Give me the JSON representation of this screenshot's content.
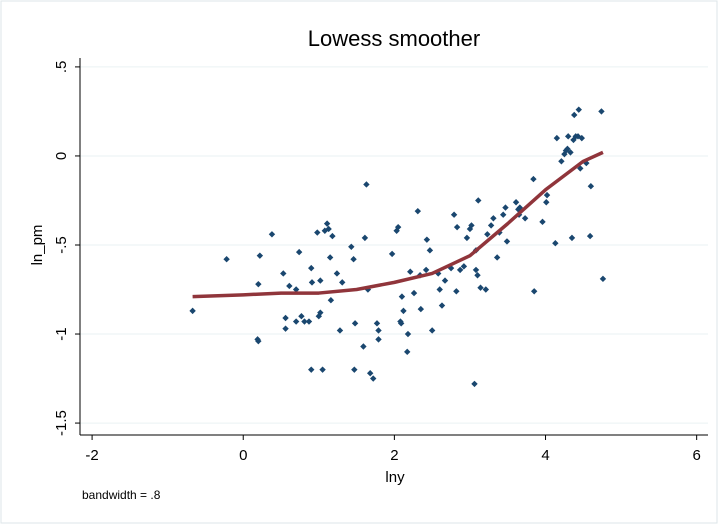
{
  "chart_data": {
    "type": "scatter",
    "title": "Lowess smoother",
    "x_label": "lny",
    "y_label": "ln_pm",
    "note": "bandwidth = .8",
    "xlim": [
      -2.16,
      6.15
    ],
    "ylim": [
      -1.567,
      0.55
    ],
    "xticks": [
      -2,
      0,
      2,
      4,
      6
    ],
    "yticks": [
      {
        "value": -1.5,
        "label": "-1.5"
      },
      {
        "value": -1,
        "label": "-1"
      },
      {
        "value": -0.5,
        "label": "-.5"
      },
      {
        "value": 0,
        "label": "0"
      },
      {
        "value": 0.5,
        "label": ".5"
      }
    ],
    "grid": true,
    "series": [
      {
        "type": "scatter",
        "color": "#1a476f",
        "x": [
          -0.67,
          -0.22,
          0.19,
          0.2,
          0.22,
          0.2,
          0.38,
          0.53,
          0.56,
          0.56,
          0.61,
          0.7,
          0.7,
          0.74,
          0.77,
          0.81,
          0.87,
          0.9,
          0.91,
          0.9,
          0.98,
          1.0,
          1.02,
          1.05,
          1.02,
          1.08,
          1.11,
          1.13,
          1.16,
          1.18,
          1.15,
          1.24,
          1.28,
          1.31,
          1.43,
          1.46,
          1.48,
          1.47,
          1.59,
          1.63,
          1.61,
          1.65,
          1.68,
          1.72,
          1.77,
          1.79,
          1.79,
          1.97,
          2.03,
          2.05,
          2.08,
          2.1,
          2.09,
          2.12,
          2.17,
          2.18,
          2.21,
          2.26,
          2.31,
          2.34,
          2.35,
          2.42,
          2.43,
          2.47,
          2.5,
          2.58,
          2.6,
          2.63,
          2.67,
          2.75,
          2.79,
          2.82,
          2.83,
          2.87,
          2.92,
          2.96,
          3.0,
          3.02,
          3.06,
          3.08,
          3.08,
          3.11,
          3.1,
          3.14,
          3.21,
          3.23,
          3.28,
          3.31,
          3.36,
          3.39,
          3.44,
          3.47,
          3.49,
          3.61,
          3.65,
          3.64,
          3.66,
          3.73,
          3.84,
          3.85,
          3.96,
          4.01,
          4.02,
          4.13,
          4.15,
          4.21,
          4.25,
          4.27,
          4.29,
          4.3,
          4.33,
          4.35,
          4.37,
          4.38,
          4.4,
          4.43,
          4.44,
          4.46,
          4.48,
          4.54,
          4.59,
          4.6,
          4.74,
          4.76
        ],
        "values": [
          -0.87,
          -0.58,
          -1.03,
          -1.04,
          -0.56,
          -0.72,
          -0.44,
          -0.66,
          -0.91,
          -0.97,
          -0.73,
          -0.75,
          -0.93,
          -0.54,
          -0.9,
          -0.93,
          -0.93,
          -0.63,
          -0.71,
          -1.2,
          -0.43,
          -0.9,
          -0.7,
          -1.2,
          -0.88,
          -0.42,
          -0.38,
          -0.41,
          -0.81,
          -0.45,
          -0.57,
          -0.66,
          -0.98,
          -0.71,
          -0.51,
          -0.58,
          -0.94,
          -1.2,
          -1.07,
          -0.16,
          -0.46,
          -0.75,
          -1.22,
          -1.25,
          -0.94,
          -0.98,
          -1.03,
          -0.55,
          -0.42,
          -0.4,
          -0.93,
          -0.79,
          -0.94,
          -0.87,
          -1.1,
          -1.0,
          -0.65,
          -0.77,
          -0.31,
          -0.67,
          -0.86,
          -0.64,
          -0.47,
          -0.53,
          -0.98,
          -0.66,
          -0.75,
          -0.84,
          -0.7,
          -0.63,
          -0.33,
          -0.76,
          -0.4,
          -0.64,
          -0.62,
          -0.46,
          -0.41,
          -0.39,
          -1.28,
          -0.53,
          -0.64,
          -0.25,
          -0.67,
          -0.74,
          -0.75,
          -0.44,
          -0.39,
          -0.35,
          -0.57,
          -0.43,
          -0.33,
          -0.29,
          -0.48,
          -0.26,
          -0.33,
          -0.3,
          -0.29,
          -0.35,
          -0.13,
          -0.76,
          -0.37,
          -0.26,
          -0.22,
          -0.49,
          0.1,
          -0.03,
          0.01,
          0.03,
          0.04,
          0.11,
          0.02,
          -0.46,
          0.09,
          0.23,
          0.11,
          0.11,
          0.26,
          -0.07,
          0.1,
          -0.04,
          -0.45,
          -0.17,
          0.25,
          -0.69
        ]
      },
      {
        "type": "line",
        "color": "#90353b",
        "x": [
          -0.67,
          0,
          0.5,
          1,
          1.5,
          2,
          2.5,
          3,
          3.5,
          4,
          4.5,
          4.76
        ],
        "values": [
          -0.79,
          -0.78,
          -0.77,
          -0.77,
          -0.75,
          -0.71,
          -0.66,
          -0.56,
          -0.38,
          -0.19,
          -0.03,
          0.02
        ]
      }
    ]
  }
}
